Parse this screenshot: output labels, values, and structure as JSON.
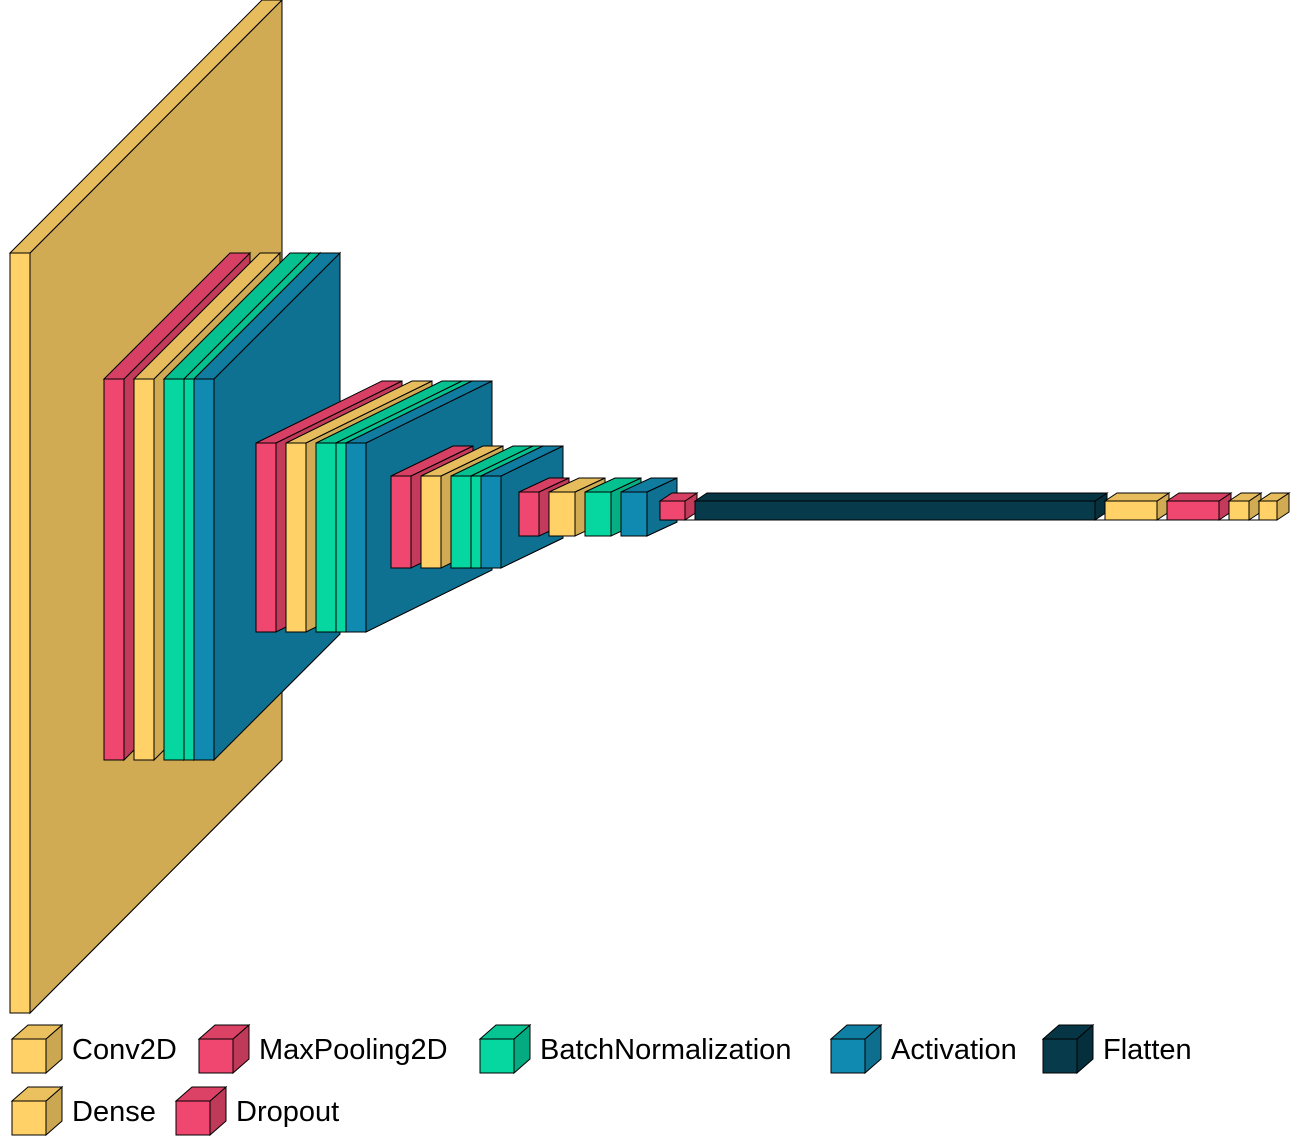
{
  "colors": {
    "Conv2D": "#ffd166",
    "MaxPooling2D": "#ef476f",
    "BatchNormalization": "#06d6a0",
    "Activation": "#118ab2",
    "Flatten": "#073b4c",
    "Dense": "#ffd166",
    "Dropout": "#ef476f"
  },
  "layers": [
    {
      "type": "Conv2D"
    },
    {
      "type": "MaxPooling2D"
    },
    {
      "type": "Conv2D"
    },
    {
      "type": "BatchNormalization"
    },
    {
      "type": "BatchNormalization"
    },
    {
      "type": "Activation"
    },
    {
      "type": "MaxPooling2D"
    },
    {
      "type": "Conv2D"
    },
    {
      "type": "BatchNormalization"
    },
    {
      "type": "BatchNormalization"
    },
    {
      "type": "Activation"
    },
    {
      "type": "MaxPooling2D"
    },
    {
      "type": "Conv2D"
    },
    {
      "type": "BatchNormalization"
    },
    {
      "type": "BatchNormalization"
    },
    {
      "type": "Activation"
    },
    {
      "type": "MaxPooling2D"
    },
    {
      "type": "Conv2D"
    },
    {
      "type": "BatchNormalization"
    },
    {
      "type": "Activation"
    },
    {
      "type": "MaxPooling2D"
    },
    {
      "type": "Flatten"
    },
    {
      "type": "Dense"
    },
    {
      "type": "Dropout"
    },
    {
      "type": "Dense"
    },
    {
      "type": "Dense"
    }
  ],
  "legend": [
    {
      "label": "Conv2D",
      "color": "#ffd166"
    },
    {
      "label": "MaxPooling2D",
      "color": "#ef476f"
    },
    {
      "label": "BatchNormalization",
      "color": "#06d6a0"
    },
    {
      "label": "Activation",
      "color": "#118ab2"
    },
    {
      "label": "Flatten",
      "color": "#073b4c"
    },
    {
      "label": "Dense",
      "color": "#ffd166"
    },
    {
      "label": "Dropout",
      "color": "#ef476f"
    }
  ]
}
